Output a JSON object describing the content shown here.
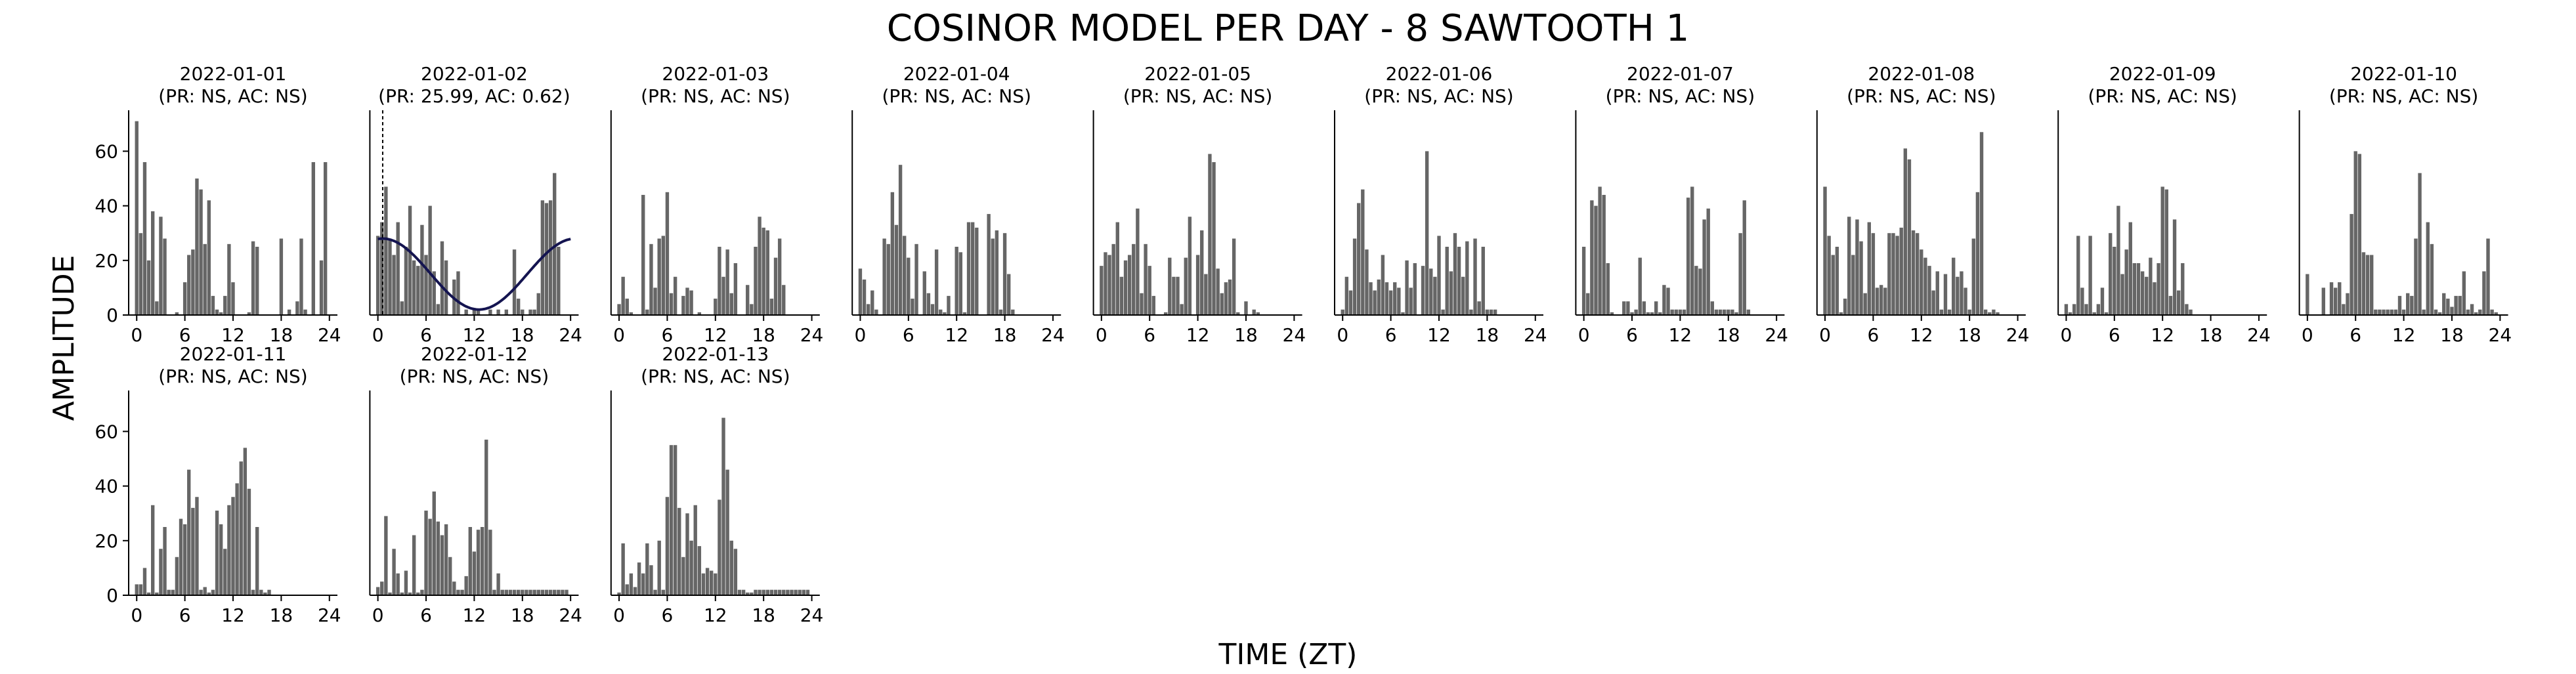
{
  "figure": {
    "title": "COSINOR MODEL PER DAY - 8 SAWTOOTH 1",
    "xlabel": "TIME (ZT)",
    "ylabel": "AMPLITUDE"
  },
  "chart_data": [
    {
      "type": "bar",
      "title": "2022-01-01",
      "subtitle": "(PR: NS, AC: NS)",
      "xlim": [
        -1,
        25
      ],
      "ylim": [
        0,
        75
      ],
      "xticks": [
        0,
        6,
        12,
        18,
        24
      ],
      "yticks": [
        0,
        20,
        40,
        60
      ],
      "bar_color": "#666666",
      "x": [
        0,
        0.5,
        1,
        1.5,
        2,
        2.5,
        3,
        3.5,
        5,
        6,
        6.5,
        7,
        7.5,
        8,
        8.5,
        9,
        9.5,
        10,
        10.5,
        11,
        11.5,
        12,
        14,
        14.5,
        15,
        18,
        19,
        19.5,
        20,
        20.5,
        21,
        21.5,
        22,
        23,
        23.5
      ],
      "values": [
        71,
        30,
        56,
        20,
        38,
        5,
        36,
        28,
        1,
        12,
        22,
        24,
        50,
        46,
        26,
        42,
        7,
        2,
        1,
        7,
        26,
        12,
        1,
        27,
        25,
        28,
        2,
        0,
        5,
        28,
        2,
        0,
        56,
        20,
        56
      ]
    },
    {
      "type": "bar",
      "title": "2022-01-02",
      "subtitle": "(PR: 25.99, AC: 0.62)",
      "xlim": [
        -1,
        25
      ],
      "ylim": [
        0,
        75
      ],
      "xticks": [
        0,
        6,
        12,
        18,
        24
      ],
      "yticks": [
        0,
        20,
        40,
        60
      ],
      "bar_color": "#666666",
      "x": [
        0,
        0.5,
        1,
        1.5,
        2,
        2.5,
        3,
        3.5,
        4,
        4.5,
        5,
        5.5,
        6,
        6.5,
        7,
        7.5,
        8,
        8.5,
        9,
        9.5,
        10,
        11,
        12,
        12.5,
        14,
        15,
        16,
        17,
        17.5,
        18,
        19,
        19.5,
        20,
        20.5,
        21,
        21.5,
        22,
        22.5,
        23,
        23.5
      ],
      "values": [
        29,
        34,
        47,
        28,
        22,
        34,
        5,
        25,
        40,
        20,
        18,
        33,
        22,
        40,
        16,
        4,
        27,
        20,
        0,
        13,
        16,
        2,
        2,
        2,
        2,
        2,
        2,
        24,
        6,
        2,
        2,
        2,
        8,
        42,
        41,
        42,
        52,
        25,
        0,
        0
      ],
      "fit": {
        "mesor": 15,
        "amplitude": 13,
        "acrophase": 0.6,
        "period": 24,
        "color": "#141450"
      },
      "marker_x": 0.6
    },
    {
      "type": "bar",
      "title": "2022-01-03",
      "subtitle": "(PR: NS, AC: NS)",
      "xlim": [
        -1,
        25
      ],
      "ylim": [
        0,
        75
      ],
      "xticks": [
        0,
        6,
        12,
        18,
        24
      ],
      "yticks": [
        0,
        20,
        40,
        60
      ],
      "bar_color": "#666666",
      "x": [
        0,
        0.5,
        1,
        1.5,
        3,
        3.5,
        4,
        4.5,
        5,
        5.5,
        6,
        6.5,
        7,
        8,
        8.5,
        9,
        10,
        12,
        12.5,
        13,
        13.5,
        14,
        14.5,
        16,
        16.5,
        17,
        17.5,
        18,
        18.5,
        19,
        19.5,
        20,
        20.5
      ],
      "values": [
        4,
        14,
        6,
        1,
        44,
        2,
        26,
        10,
        28,
        29,
        45,
        8,
        14,
        7,
        10,
        9,
        1,
        6,
        25,
        14,
        24,
        8,
        19,
        11,
        4,
        25,
        36,
        32,
        31,
        6,
        21,
        28,
        11
      ]
    },
    {
      "type": "bar",
      "title": "2022-01-04",
      "subtitle": "(PR: NS, AC: NS)",
      "xlim": [
        -1,
        25
      ],
      "ylim": [
        0,
        75
      ],
      "xticks": [
        0,
        6,
        12,
        18,
        24
      ],
      "yticks": [
        0,
        20,
        40,
        60
      ],
      "bar_color": "#666666",
      "x": [
        0,
        0.5,
        1,
        1.5,
        2,
        3,
        3.5,
        4,
        4.5,
        5,
        5.5,
        6,
        6.5,
        7,
        8,
        8.5,
        9,
        9.5,
        10,
        10.5,
        11,
        12,
        12.5,
        13,
        13.5,
        14,
        14.5,
        16,
        16.5,
        17,
        17.5,
        18,
        18.5,
        19,
        19.5
      ],
      "values": [
        17,
        13,
        4,
        9,
        2,
        28,
        26,
        45,
        33,
        55,
        29,
        21,
        6,
        26,
        16,
        8,
        4,
        24,
        2,
        1,
        7,
        25,
        23,
        1,
        34,
        34,
        32,
        37,
        28,
        31,
        2,
        30,
        15,
        2,
        0
      ]
    },
    {
      "type": "bar",
      "title": "2022-01-05",
      "subtitle": "(PR: NS, AC: NS)",
      "xlim": [
        -1,
        25
      ],
      "ylim": [
        0,
        75
      ],
      "xticks": [
        0,
        6,
        12,
        18,
        24
      ],
      "yticks": [
        0,
        20,
        40,
        60
      ],
      "bar_color": "#666666",
      "x": [
        0,
        0.5,
        1,
        1.5,
        2,
        2.5,
        3,
        3.5,
        4,
        4.5,
        5,
        5.5,
        6,
        6.5,
        8,
        8.5,
        9,
        9.5,
        10,
        10.5,
        11,
        12,
        12.5,
        13,
        13.5,
        14,
        14.5,
        15,
        15.5,
        16,
        16.5,
        17,
        18,
        19,
        19.5
      ],
      "values": [
        18,
        23,
        22,
        26,
        34,
        14,
        20,
        22,
        26,
        39,
        8,
        26,
        18,
        7,
        1,
        21,
        14,
        14,
        4,
        21,
        36,
        22,
        31,
        15,
        59,
        56,
        17,
        8,
        12,
        13,
        28,
        1,
        5,
        2,
        1
      ]
    },
    {
      "type": "bar",
      "title": "2022-01-06",
      "subtitle": "(PR: NS, AC: NS)",
      "xlim": [
        -1,
        25
      ],
      "ylim": [
        0,
        75
      ],
      "xticks": [
        0,
        6,
        12,
        18,
        24
      ],
      "yticks": [
        0,
        20,
        40,
        60
      ],
      "bar_color": "#666666",
      "x": [
        0,
        0.5,
        1,
        1.5,
        2,
        2.5,
        3,
        3.5,
        4,
        4.5,
        5,
        5.5,
        6,
        6.5,
        7,
        7.5,
        8,
        8.5,
        9,
        10,
        10.5,
        11,
        11.5,
        12,
        12.5,
        13,
        13.5,
        14,
        14.5,
        15,
        15.5,
        16,
        16.5,
        17,
        17.5,
        18,
        18.5,
        19
      ],
      "values": [
        2,
        14,
        9,
        28,
        41,
        46,
        24,
        12,
        9,
        13,
        22,
        12,
        9,
        12,
        10,
        1,
        20,
        10,
        19,
        18,
        60,
        17,
        14,
        29,
        2,
        25,
        16,
        30,
        25,
        14,
        27,
        2,
        28,
        5,
        25,
        2,
        2,
        2
      ]
    },
    {
      "type": "bar",
      "title": "2022-01-07",
      "subtitle": "(PR: NS, AC: NS)",
      "xlim": [
        -1,
        25
      ],
      "ylim": [
        0,
        75
      ],
      "xticks": [
        0,
        6,
        12,
        18,
        24
      ],
      "yticks": [
        0,
        20,
        40,
        60
      ],
      "bar_color": "#666666",
      "x": [
        0,
        0.5,
        1,
        1.5,
        2,
        2.5,
        3,
        3.5,
        5,
        5.5,
        6,
        6.5,
        7,
        7.5,
        8,
        8.5,
        9,
        9.5,
        10,
        10.5,
        11,
        11.5,
        12,
        12.5,
        13,
        13.5,
        14,
        14.5,
        15,
        15.5,
        16,
        16.5,
        17,
        17.5,
        18,
        18.5,
        19,
        19.5,
        20,
        20.5
      ],
      "values": [
        25,
        8,
        42,
        40,
        47,
        44,
        19,
        1,
        5,
        5,
        1,
        2,
        21,
        5,
        1,
        1,
        5,
        1,
        11,
        10,
        2,
        2,
        2,
        2,
        43,
        47,
        18,
        17,
        35,
        39,
        5,
        2,
        2,
        2,
        2,
        2,
        1,
        30,
        42,
        2
      ]
    },
    {
      "type": "bar",
      "title": "2022-01-08",
      "subtitle": "(PR: NS, AC: NS)",
      "xlim": [
        -1,
        25
      ],
      "ylim": [
        0,
        75
      ],
      "xticks": [
        0,
        6,
        12,
        18,
        24
      ],
      "yticks": [
        0,
        20,
        40,
        60
      ],
      "bar_color": "#666666",
      "x": [
        0,
        0.5,
        1,
        1.5,
        2,
        2.5,
        3,
        3.5,
        4,
        4.5,
        5,
        5.5,
        6,
        6.5,
        7,
        7.5,
        8,
        8.5,
        9,
        9.5,
        10,
        10.5,
        11,
        11.5,
        12,
        12.5,
        13,
        13.5,
        14,
        14.5,
        15,
        15.5,
        16,
        16.5,
        17,
        17.5,
        18,
        18.5,
        19,
        19.5,
        20,
        20.5,
        21,
        21.5
      ],
      "values": [
        47,
        29,
        22,
        25,
        1,
        6,
        36,
        22,
        35,
        27,
        8,
        34,
        30,
        10,
        11,
        10,
        30,
        30,
        29,
        32,
        61,
        57,
        31,
        30,
        24,
        21,
        18,
        9,
        16,
        2,
        15,
        2,
        21,
        14,
        16,
        10,
        2,
        28,
        45,
        67,
        2,
        1,
        2,
        1
      ]
    },
    {
      "type": "bar",
      "title": "2022-01-09",
      "subtitle": "(PR: NS, AC: NS)",
      "xlim": [
        -1,
        25
      ],
      "ylim": [
        0,
        75
      ],
      "xticks": [
        0,
        6,
        12,
        18,
        24
      ],
      "yticks": [
        0,
        20,
        40,
        60
      ],
      "bar_color": "#666666",
      "x": [
        0,
        0.5,
        1,
        1.5,
        2,
        2.5,
        3,
        3.5,
        4,
        4.5,
        5,
        5.5,
        6,
        6.5,
        7,
        7.5,
        8,
        8.5,
        9,
        9.5,
        10,
        10.5,
        11,
        11.5,
        12,
        12.5,
        13,
        13.5,
        14,
        14.5,
        15,
        15.5,
        16,
        16.5,
        17,
        17.5,
        18,
        18.5,
        19,
        19.5,
        20,
        20.5
      ],
      "values": [
        4,
        1,
        4,
        29,
        10,
        4,
        29,
        1,
        4,
        10,
        1,
        30,
        25,
        40,
        15,
        24,
        34,
        19,
        19,
        16,
        14,
        21,
        12,
        19,
        47,
        46,
        7,
        35,
        9,
        19,
        4,
        2,
        0,
        0,
        0,
        0,
        0,
        0,
        0,
        0,
        0,
        0
      ]
    },
    {
      "type": "bar",
      "title": "2022-01-10",
      "subtitle": "(PR: NS, AC: NS)",
      "xlim": [
        -1,
        25
      ],
      "ylim": [
        0,
        75
      ],
      "xticks": [
        0,
        6,
        12,
        18,
        24
      ],
      "yticks": [
        0,
        20,
        40,
        60
      ],
      "bar_color": "#666666",
      "x": [
        0,
        2,
        3,
        3.5,
        4,
        4.5,
        5,
        5.5,
        6,
        6.5,
        7,
        7.5,
        8,
        8.5,
        9,
        9.5,
        10,
        10.5,
        11,
        11.5,
        12,
        12.5,
        13,
        13.5,
        14,
        14.5,
        15,
        15.5,
        16,
        16.5,
        17,
        17.5,
        18,
        18.5,
        19,
        19.5,
        20,
        20.5,
        21,
        21.5,
        22,
        22.5,
        23,
        23.5
      ],
      "values": [
        15,
        10,
        12,
        10,
        12,
        4,
        8,
        37,
        60,
        59,
        23,
        22,
        22,
        2,
        2,
        2,
        2,
        2,
        2,
        7,
        2,
        8,
        7,
        28,
        52,
        2,
        34,
        26,
        2,
        1,
        8,
        6,
        3,
        7,
        7,
        16,
        2,
        4,
        1,
        2,
        16,
        28,
        2,
        1
      ]
    },
    {
      "type": "bar",
      "title": "2022-01-11",
      "subtitle": "(PR: NS, AC: NS)",
      "xlim": [
        -1,
        25
      ],
      "ylim": [
        0,
        75
      ],
      "xticks": [
        0,
        6,
        12,
        18,
        24
      ],
      "yticks": [
        0,
        20,
        40,
        60
      ],
      "bar_color": "#666666",
      "x": [
        0,
        0.5,
        1,
        1.5,
        2,
        2.5,
        3,
        3.5,
        4,
        4.5,
        5,
        5.5,
        6,
        6.5,
        7,
        7.5,
        8,
        8.5,
        9,
        9.5,
        10,
        10.5,
        11,
        11.5,
        12,
        12.5,
        13,
        13.5,
        14,
        14.5,
        15,
        15.5,
        16,
        16.5,
        17,
        17.5,
        18,
        18.5,
        19,
        19.5,
        20,
        20.5,
        21,
        21.5
      ],
      "values": [
        4,
        4,
        10,
        1,
        33,
        1,
        17,
        25,
        2,
        2,
        14,
        28,
        26,
        46,
        32,
        36,
        2,
        3,
        1,
        2,
        31,
        26,
        17,
        33,
        36,
        41,
        49,
        54,
        39,
        2,
        25,
        2,
        1,
        2,
        0,
        0,
        0,
        0,
        0,
        0,
        0,
        0,
        0,
        0
      ]
    },
    {
      "type": "bar",
      "title": "2022-01-12",
      "subtitle": "(PR: NS, AC: NS)",
      "xlim": [
        -1,
        25
      ],
      "ylim": [
        0,
        75
      ],
      "xticks": [
        0,
        6,
        12,
        18,
        24
      ],
      "yticks": [
        0,
        20,
        40,
        60
      ],
      "bar_color": "#666666",
      "x": [
        0,
        0.5,
        1,
        1.5,
        2,
        2.5,
        3,
        3.5,
        4,
        4.5,
        5,
        5.5,
        6,
        6.5,
        7,
        7.5,
        8,
        8.5,
        9,
        9.5,
        10,
        10.5,
        11,
        11.5,
        12,
        12.5,
        13,
        13.5,
        14,
        14.5,
        15,
        15.5,
        16,
        16.5,
        17,
        17.5,
        18,
        18.5,
        19,
        19.5,
        20,
        20.5,
        21,
        21.5,
        22,
        22.5,
        23,
        23.5
      ],
      "values": [
        3,
        5,
        29,
        1,
        17,
        8,
        1,
        9,
        1,
        22,
        1,
        2,
        31,
        28,
        38,
        27,
        22,
        26,
        14,
        5,
        2,
        2,
        7,
        25,
        16,
        24,
        25,
        57,
        24,
        2,
        8,
        2,
        2,
        2,
        2,
        2,
        2,
        2,
        2,
        2,
        2,
        2,
        2,
        2,
        2,
        2,
        2,
        2
      ]
    },
    {
      "type": "bar",
      "title": "2022-01-13",
      "subtitle": "(PR: NS, AC: NS)",
      "xlim": [
        -1,
        25
      ],
      "ylim": [
        0,
        75
      ],
      "xticks": [
        0,
        6,
        12,
        18,
        24
      ],
      "yticks": [
        0,
        20,
        40,
        60
      ],
      "bar_color": "#666666",
      "x": [
        0,
        0.5,
        1,
        1.5,
        2,
        2.5,
        3,
        3.5,
        4,
        4.5,
        5,
        5.5,
        6,
        6.5,
        7,
        7.5,
        8,
        8.5,
        9,
        9.5,
        10,
        10.5,
        11,
        11.5,
        12,
        12.5,
        13,
        13.5,
        14,
        14.5,
        15,
        15.5,
        16,
        16.5,
        17,
        17.5,
        18,
        18.5,
        19,
        19.5,
        20,
        20.5,
        21,
        21.5,
        22,
        22.5,
        23,
        23.5
      ],
      "values": [
        1,
        19,
        4,
        8,
        3,
        12,
        8,
        19,
        11,
        2,
        20,
        2,
        36,
        55,
        55,
        32,
        14,
        30,
        20,
        33,
        18,
        8,
        10,
        9,
        8,
        35,
        65,
        46,
        20,
        17,
        2,
        2,
        1,
        1,
        2,
        2,
        2,
        2,
        2,
        2,
        2,
        2,
        2,
        2,
        2,
        2,
        2,
        2
      ]
    }
  ]
}
